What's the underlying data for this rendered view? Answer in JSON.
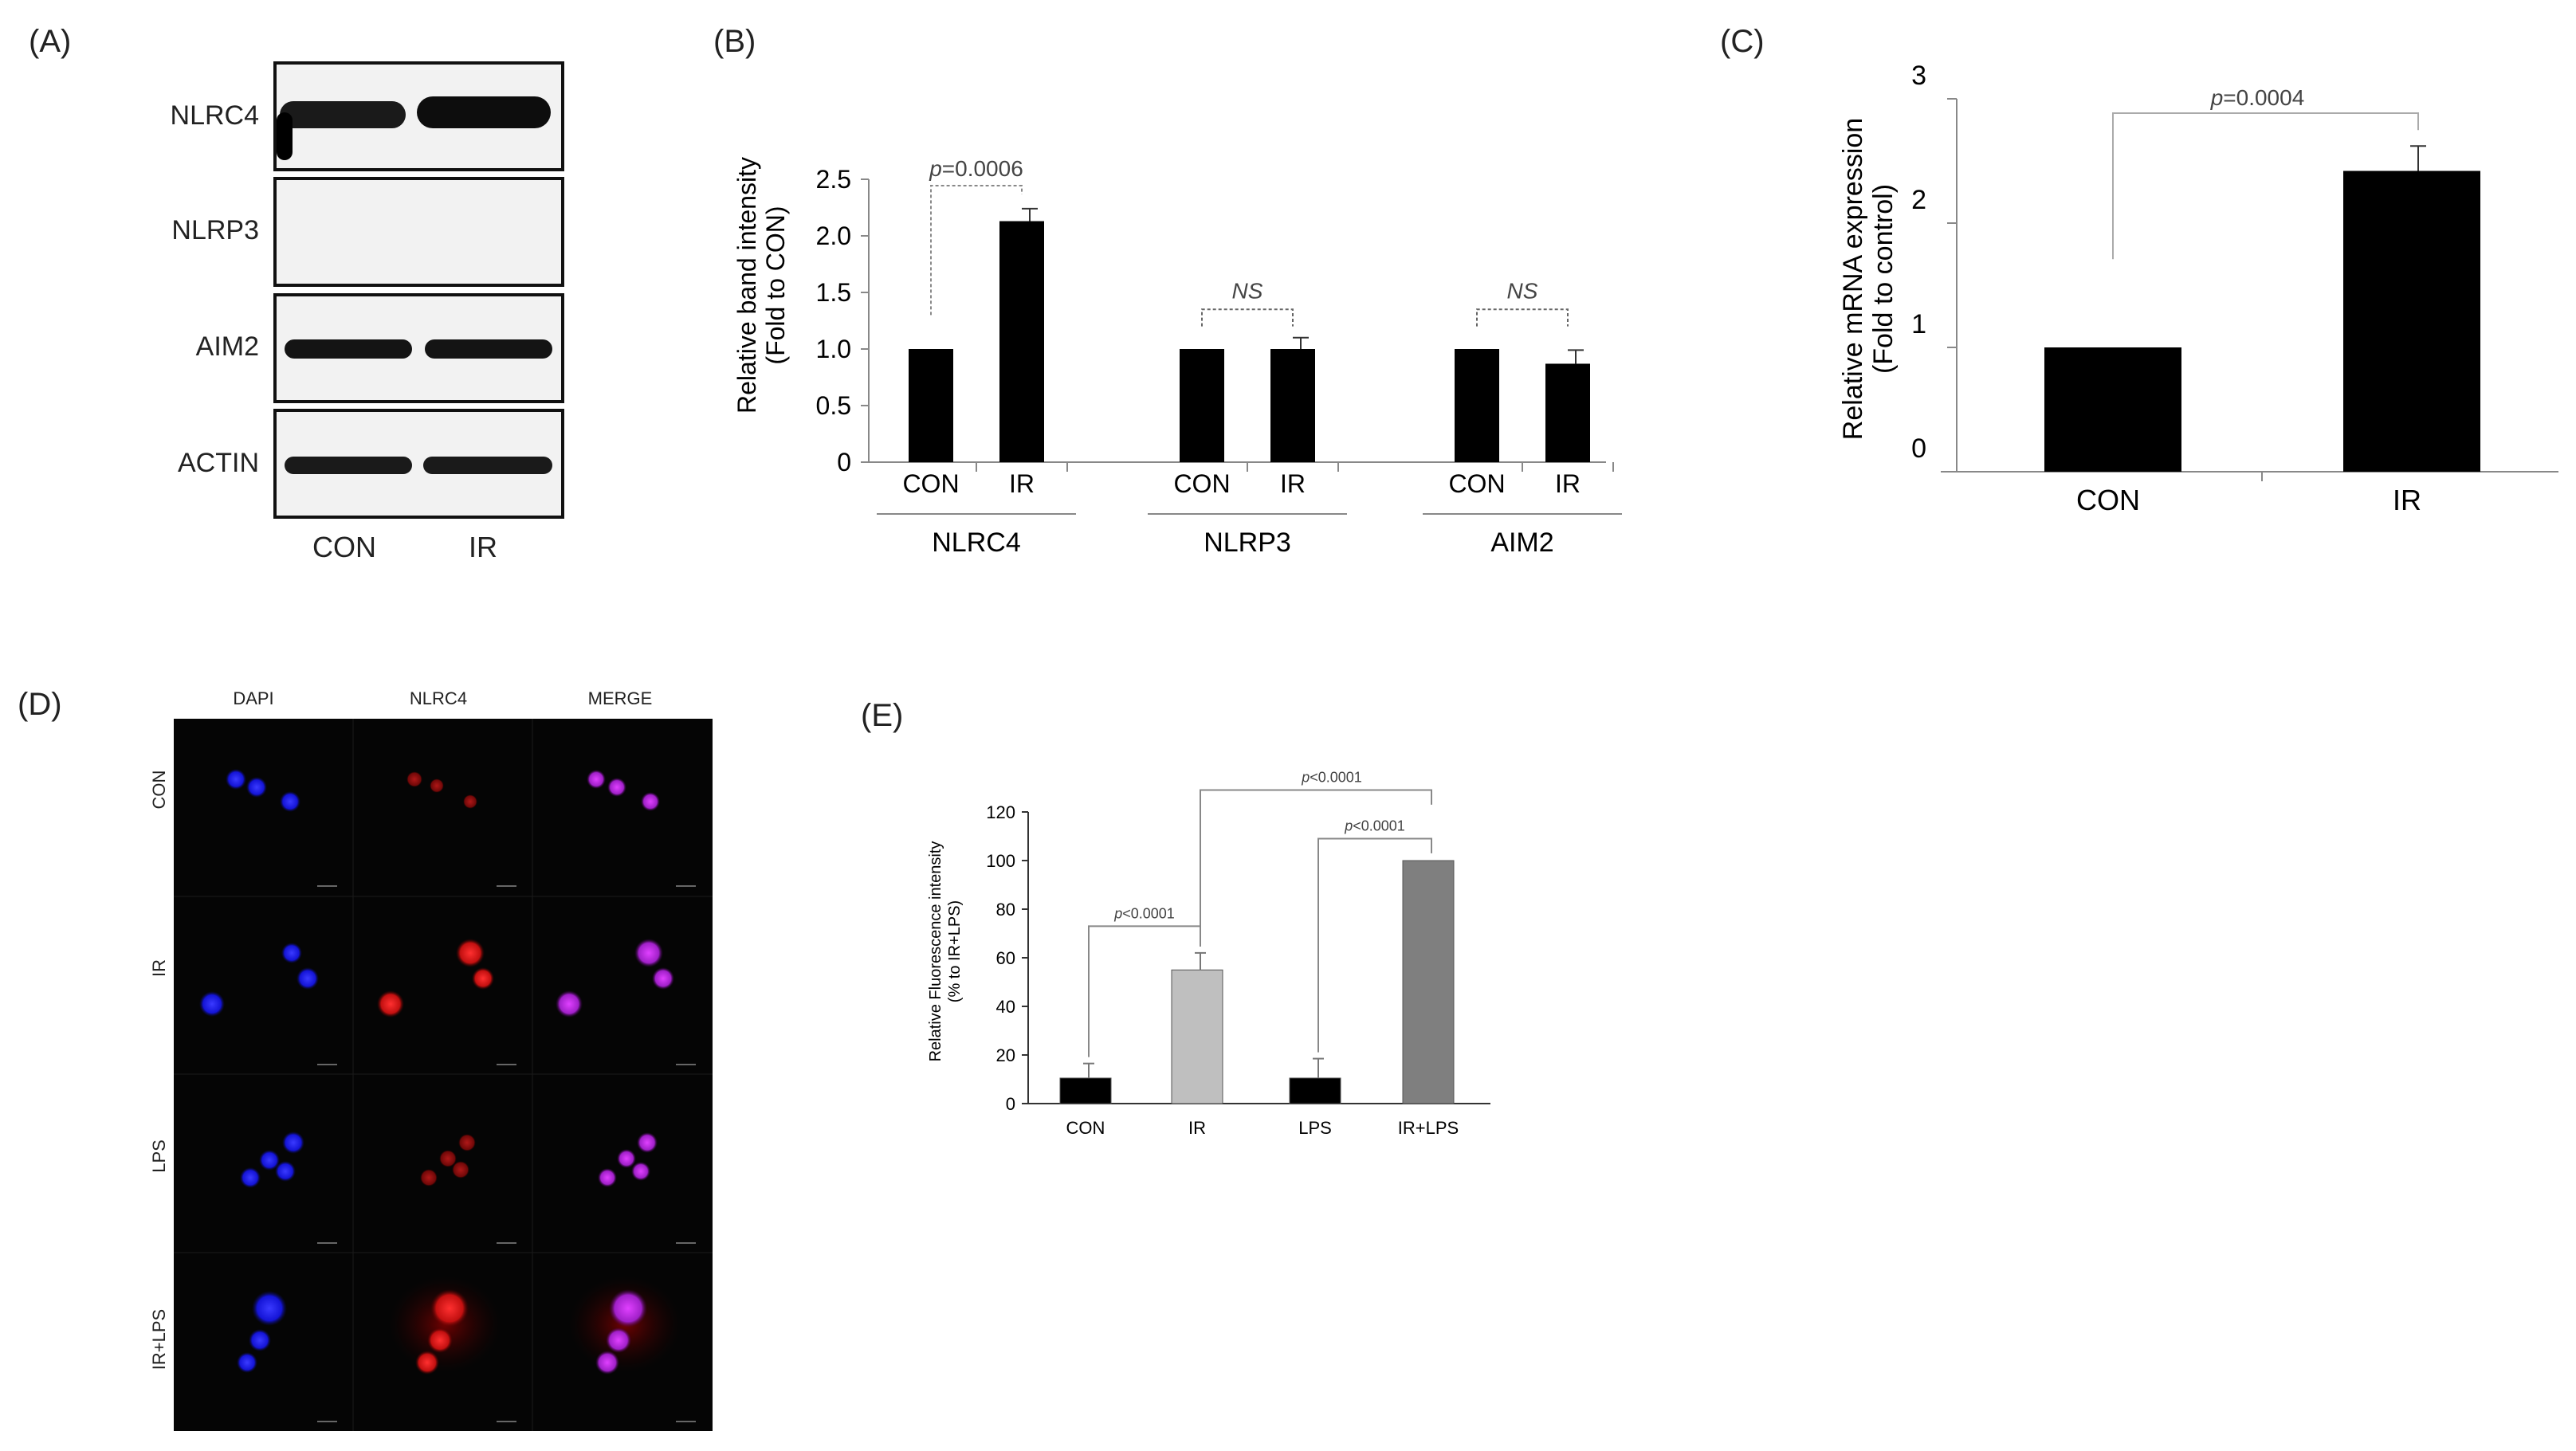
{
  "panels": {
    "a": "(A)",
    "b": "(B)",
    "c": "(C)",
    "d": "(D)",
    "e": "(E)"
  },
  "blot": {
    "rows": [
      "NLRC4",
      "NLRP3",
      "AIM2",
      "ACTIN"
    ],
    "lanes": [
      "CON",
      "IR"
    ]
  },
  "micro": {
    "columns": [
      "DAPI",
      "NLRC4",
      "MERGE"
    ],
    "rows": [
      "CON",
      "IR",
      "LPS",
      "IR+LPS"
    ]
  },
  "chart_data": [
    {
      "id": "B",
      "type": "bar",
      "ylabel": [
        "Relative band intensity",
        "(Fold to CON)"
      ],
      "ylim": [
        0,
        2.5
      ],
      "yticks": [
        "0",
        "0.5",
        "1.0",
        "1.5",
        "2.0",
        "2.5"
      ],
      "groups": [
        {
          "name": "NLRC4",
          "categories": [
            "CON",
            "IR"
          ],
          "values": [
            1.0,
            2.13
          ],
          "errors": [
            0,
            0.11
          ],
          "annotation": "p=0.0006",
          "annotation_italic_prefix": "p"
        },
        {
          "name": "NLRP3",
          "categories": [
            "CON",
            "IR"
          ],
          "values": [
            1.0,
            1.0
          ],
          "errors": [
            0,
            0.1
          ],
          "annotation": "NS"
        },
        {
          "name": "AIM2",
          "categories": [
            "CON",
            "IR"
          ],
          "values": [
            1.0,
            0.87
          ],
          "errors": [
            0,
            0.12
          ],
          "annotation": "NS"
        }
      ],
      "bar_color": "#000000"
    },
    {
      "id": "C",
      "type": "bar",
      "ylabel": [
        "Relative mRNA expression",
        "(Fold to control)"
      ],
      "ylim": [
        0,
        3
      ],
      "yticks": [
        "0",
        "1",
        "2",
        "3"
      ],
      "categories": [
        "CON",
        "IR"
      ],
      "values": [
        1.0,
        2.42
      ],
      "errors": [
        0,
        0.2
      ],
      "annotation": "p=0.0004",
      "bar_color": "#000000"
    },
    {
      "id": "E",
      "type": "bar",
      "ylabel": [
        "Relative Fluorescence intensity",
        "(% to IR+LPS)"
      ],
      "ylim": [
        0,
        120
      ],
      "yticks": [
        "0",
        "20",
        "40",
        "60",
        "80",
        "100",
        "120"
      ],
      "categories": [
        "CON",
        "IR",
        "LPS",
        "IR+LPS"
      ],
      "values": [
        10.5,
        55,
        10.5,
        100
      ],
      "errors": [
        6,
        7,
        8,
        0
      ],
      "colors": [
        "#000000",
        "#bfbfbf",
        "#000000",
        "#7f7f7f"
      ],
      "annotations": [
        "p<0.0001",
        "p<0.0001",
        "p<0.0001"
      ]
    }
  ]
}
